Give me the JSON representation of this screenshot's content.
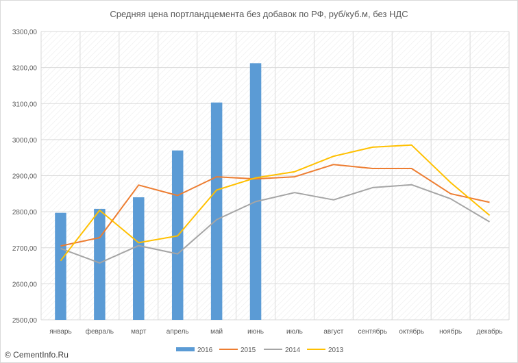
{
  "chart_data": {
    "type": "bar",
    "title": "Средняя цена портландцемента без добавок по РФ, руб/куб.м, без НДС",
    "xlabel": "",
    "ylabel": "",
    "categories": [
      "январь",
      "февраль",
      "март",
      "апрель",
      "май",
      "июнь",
      "июль",
      "август",
      "сентябрь",
      "октябрь",
      "ноябрь",
      "декабрь"
    ],
    "ylim": [
      2500,
      3300
    ],
    "yticks": [
      2500,
      2600,
      2700,
      2800,
      2900,
      3000,
      3100,
      3200,
      3300
    ],
    "ytick_labels": [
      "2500,00",
      "2600,00",
      "2700,00",
      "2800,00",
      "2900,00",
      "3000,00",
      "3100,00",
      "3200,00",
      "3300,00"
    ],
    "grid": true,
    "background_pattern": "diagonal hatch",
    "legend_position": "bottom",
    "series": [
      {
        "name": "2016",
        "kind": "bar",
        "color": "#5b9bd5",
        "values": [
          2797,
          2808,
          2840,
          2970,
          3103,
          3212,
          null,
          null,
          null,
          null,
          null,
          null
        ]
      },
      {
        "name": "2015",
        "kind": "line",
        "color": "#ed7d31",
        "values": [
          2705,
          2728,
          2874,
          2845,
          2897,
          2891,
          2897,
          2931,
          2920,
          2920,
          2850,
          2826
        ]
      },
      {
        "name": "2014",
        "kind": "line",
        "color": "#a5a5a5",
        "values": [
          2698,
          2658,
          2706,
          2683,
          2778,
          2828,
          2853,
          2833,
          2867,
          2875,
          2836,
          2772
        ]
      },
      {
        "name": "2013",
        "kind": "line",
        "color": "#ffc000",
        "values": [
          2664,
          2804,
          2714,
          2733,
          2860,
          2894,
          2911,
          2954,
          2979,
          2985,
          2881,
          2790
        ]
      }
    ]
  },
  "watermark": "© CementInfo.Ru"
}
